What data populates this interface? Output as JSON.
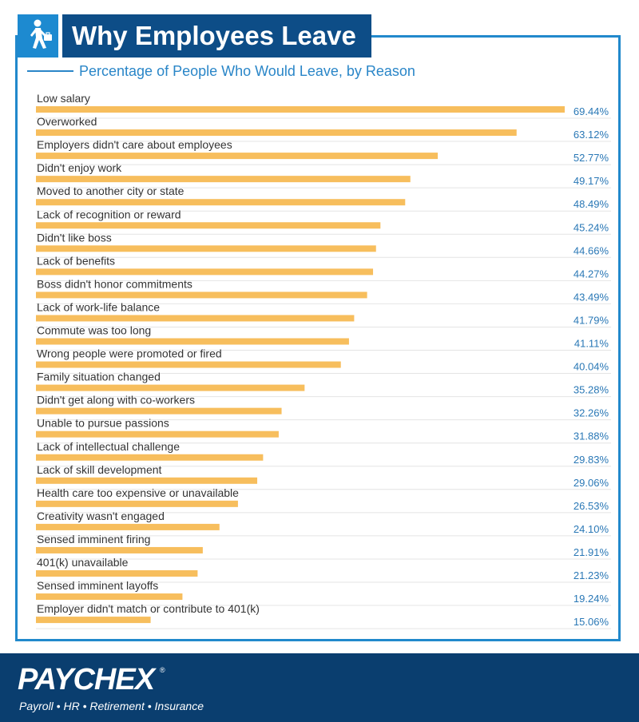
{
  "title": "Why Employees Leave",
  "colors": {
    "frame": "#2189cc",
    "title_bg": "#0d4d87",
    "icon_bg": "#1d8ad0",
    "bar": "#f7be5d",
    "value_text": "#2a78b6",
    "footer_bg": "#0a3e6f"
  },
  "icons": {
    "header": "person-walking-with-briefcase-icon"
  },
  "chart_data": {
    "type": "bar",
    "orientation": "horizontal",
    "subtitle": "Percentage of People Who Would Leave, by Reason",
    "categories": [
      "Low salary",
      "Overworked",
      "Employers didn't care about employees",
      "Didn't enjoy work",
      "Moved to another city or state",
      "Lack of recognition or reward",
      "Didn't like boss",
      "Lack of benefits",
      "Boss didn't honor commitments",
      "Lack of work-life balance",
      "Commute was too long",
      "Wrong people were promoted or fired",
      "Family situation changed",
      "Didn't get along with co-workers",
      "Unable to pursue passions",
      "Lack of intellectual challenge",
      "Lack of skill development",
      "Health care too expensive or unavailable",
      "Creativity wasn't engaged",
      "Sensed imminent firing",
      "401(k) unavailable",
      "Sensed imminent layoffs",
      "Employer didn't match or contribute to 401(k)"
    ],
    "values": [
      69.44,
      63.12,
      52.77,
      49.17,
      48.49,
      45.24,
      44.66,
      44.27,
      43.49,
      41.79,
      41.11,
      40.04,
      35.28,
      32.26,
      31.88,
      29.83,
      29.06,
      26.53,
      24.1,
      21.91,
      21.23,
      19.24,
      15.06
    ],
    "value_labels": [
      "69.44%",
      "63.12%",
      "52.77%",
      "49.17%",
      "48.49%",
      "45.24%",
      "44.66%",
      "44.27%",
      "43.49%",
      "41.79%",
      "41.11%",
      "40.04%",
      "35.28%",
      "32.26%",
      "31.88%",
      "29.83%",
      "29.06%",
      "26.53%",
      "24.10%",
      "21.91%",
      "21.23%",
      "19.24%",
      "15.06%"
    ],
    "xlim": [
      0,
      69.44
    ],
    "grid": false,
    "legend": "none"
  },
  "footer": {
    "brand": "PAYCHEX",
    "brand_mark": "®",
    "tagline": "Payroll • HR • Retirement • Insurance"
  }
}
